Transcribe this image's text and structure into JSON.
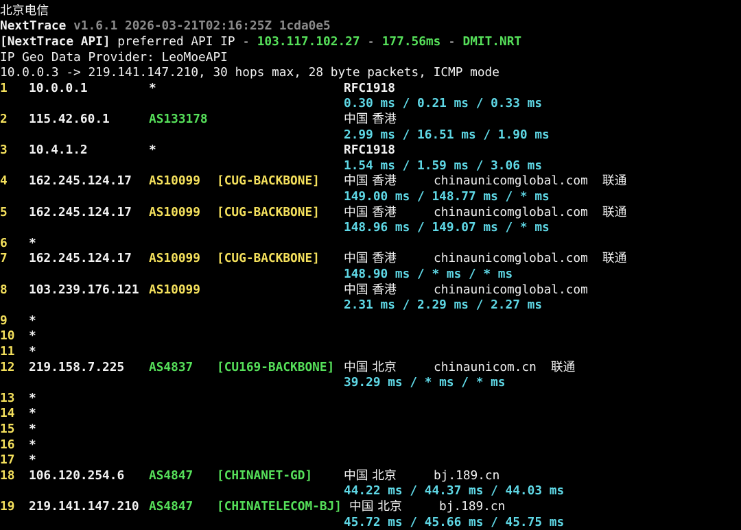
{
  "title_line": "北京电信",
  "version_line": {
    "app": "NextTrace",
    "version": "v1.6.1 2026-03-21T02:16:25Z 1cda0e5"
  },
  "api_line": {
    "prefix": "[NextTrace API]",
    "text1": " preferred API IP - ",
    "ip": "103.117.102.27",
    "sep1": " - ",
    "latency": "177.56ms",
    "sep2": " - ",
    "node": "DMIT.NRT"
  },
  "provider_line": "IP Geo Data Provider: LeoMoeAPI",
  "trace_line": "10.0.0.3 -> 219.141.147.210, 30 hops max, 28 byte packets, ICMP mode",
  "colors": {
    "background": "#000000",
    "text": "#f2f2f2",
    "muted": "#8a8a8a",
    "green": "#56e05a",
    "yellow": "#f4e05c",
    "cyan": "#5fd8e6"
  },
  "hops": [
    {
      "hop": "1",
      "ip": "10.0.0.1",
      "as": "*",
      "as_color": "white",
      "tag": "",
      "tag_color": "",
      "geo": "RFC1918",
      "domain": "",
      "carrier": "",
      "times": "0.30 ms / 0.21 ms / 0.33 ms"
    },
    {
      "hop": "2",
      "ip": "115.42.60.1",
      "as": "AS133178",
      "as_color": "green",
      "tag": "",
      "tag_color": "",
      "geo": "中国 香港",
      "domain": "",
      "carrier": "",
      "times": "2.99 ms / 16.51 ms / 1.90 ms"
    },
    {
      "hop": "3",
      "ip": "10.4.1.2",
      "as": "*",
      "as_color": "white",
      "tag": "",
      "tag_color": "",
      "geo": "RFC1918",
      "domain": "",
      "carrier": "",
      "times": "1.54 ms / 1.59 ms / 3.06 ms"
    },
    {
      "hop": "4",
      "ip": "162.245.124.17",
      "as": "AS10099",
      "as_color": "yellow",
      "tag": "[CUG-BACKBONE]",
      "tag_color": "yellow",
      "geo": "中国 香港",
      "domain": "chinaunicomglobal.com",
      "carrier": "联通",
      "times": "149.00 ms / 148.77 ms / * ms"
    },
    {
      "hop": "5",
      "ip": "162.245.124.17",
      "as": "AS10099",
      "as_color": "yellow",
      "tag": "[CUG-BACKBONE]",
      "tag_color": "yellow",
      "geo": "中国 香港",
      "domain": "chinaunicomglobal.com",
      "carrier": "联通",
      "times": "148.96 ms / 149.07 ms / * ms"
    },
    {
      "hop": "6",
      "ip": "*"
    },
    {
      "hop": "7",
      "ip": "162.245.124.17",
      "as": "AS10099",
      "as_color": "yellow",
      "tag": "[CUG-BACKBONE]",
      "tag_color": "yellow",
      "geo": "中国 香港",
      "domain": "chinaunicomglobal.com",
      "carrier": "联通",
      "times": "148.90 ms / * ms / * ms"
    },
    {
      "hop": "8",
      "ip": "103.239.176.121",
      "as": "AS10099",
      "as_color": "yellow",
      "tag": "",
      "tag_color": "",
      "geo": "中国 香港",
      "domain": "chinaunicomglobal.com",
      "carrier": "",
      "times": "2.31 ms / 2.29 ms / 2.27 ms"
    },
    {
      "hop": "9",
      "ip": "*"
    },
    {
      "hop": "10",
      "ip": "*"
    },
    {
      "hop": "11",
      "ip": "*"
    },
    {
      "hop": "12",
      "ip": "219.158.7.225",
      "as": "AS4837",
      "as_color": "green",
      "tag": "[CU169-BACKBONE]",
      "tag_color": "green",
      "geo": "中国 北京",
      "domain": "chinaunicom.cn",
      "carrier": "联通",
      "times": "39.29 ms / * ms / * ms"
    },
    {
      "hop": "13",
      "ip": "*"
    },
    {
      "hop": "14",
      "ip": "*"
    },
    {
      "hop": "15",
      "ip": "*"
    },
    {
      "hop": "16",
      "ip": "*"
    },
    {
      "hop": "17",
      "ip": "*"
    },
    {
      "hop": "18",
      "ip": "106.120.254.6",
      "as": "AS4847",
      "as_color": "green",
      "tag": "[CHINANET-GD]",
      "tag_color": "green",
      "geo": "中国 北京",
      "domain": "bj.189.cn",
      "carrier": "",
      "times": "44.22 ms / 44.37 ms / 44.03 ms"
    },
    {
      "hop": "19",
      "ip": "219.141.147.210",
      "as": "AS4847",
      "as_color": "green",
      "tag": "[CHINATELECOM-BJ]",
      "tag_color": "green",
      "geo": "中国 北京",
      "domain": "bj.189.cn",
      "carrier": "",
      "times": "45.72 ms / 45.66 ms / 45.75 ms"
    }
  ]
}
